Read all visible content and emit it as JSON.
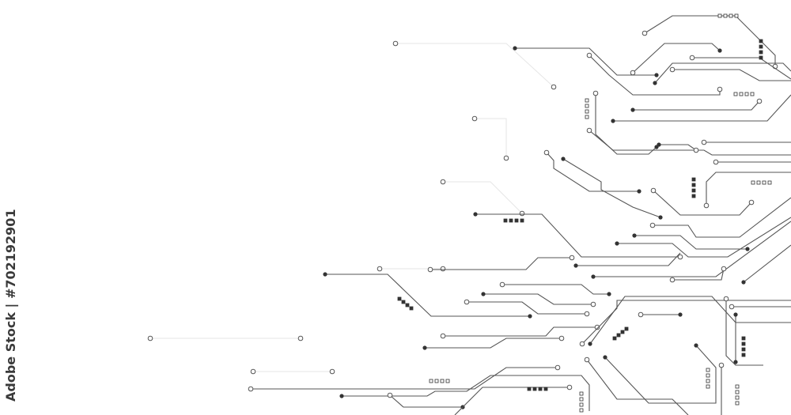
{
  "watermark": {
    "text": "Adobe Stock | #702192901"
  },
  "colors": {
    "background": "#ffffff",
    "trace": "#555555",
    "faint_trace": "#e6e6e6",
    "node": "#333333"
  }
}
